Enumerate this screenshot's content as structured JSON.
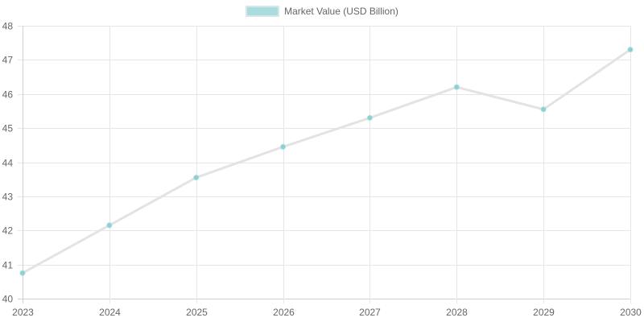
{
  "chart_data": {
    "type": "line",
    "title": "",
    "xlabel": "",
    "ylabel": "",
    "categories": [
      "2023",
      "2024",
      "2025",
      "2026",
      "2027",
      "2028",
      "2029",
      "2030"
    ],
    "series": [
      {
        "name": "Market Value (USD Billion)",
        "values": [
          40.75,
          42.15,
          43.55,
          44.45,
          45.3,
          46.2,
          45.55,
          47.3
        ],
        "line_color": "#e3e3e3",
        "point_color": "#8ecfd3"
      }
    ],
    "ylim": [
      40,
      48
    ],
    "yticks": [
      "40",
      "41",
      "42",
      "43",
      "44",
      "45",
      "46",
      "47",
      "48"
    ],
    "grid": true,
    "legend_position": "top"
  },
  "legend": {
    "label": "Market Value (USD Billion)",
    "swatch_color": "#a8dcdf"
  }
}
